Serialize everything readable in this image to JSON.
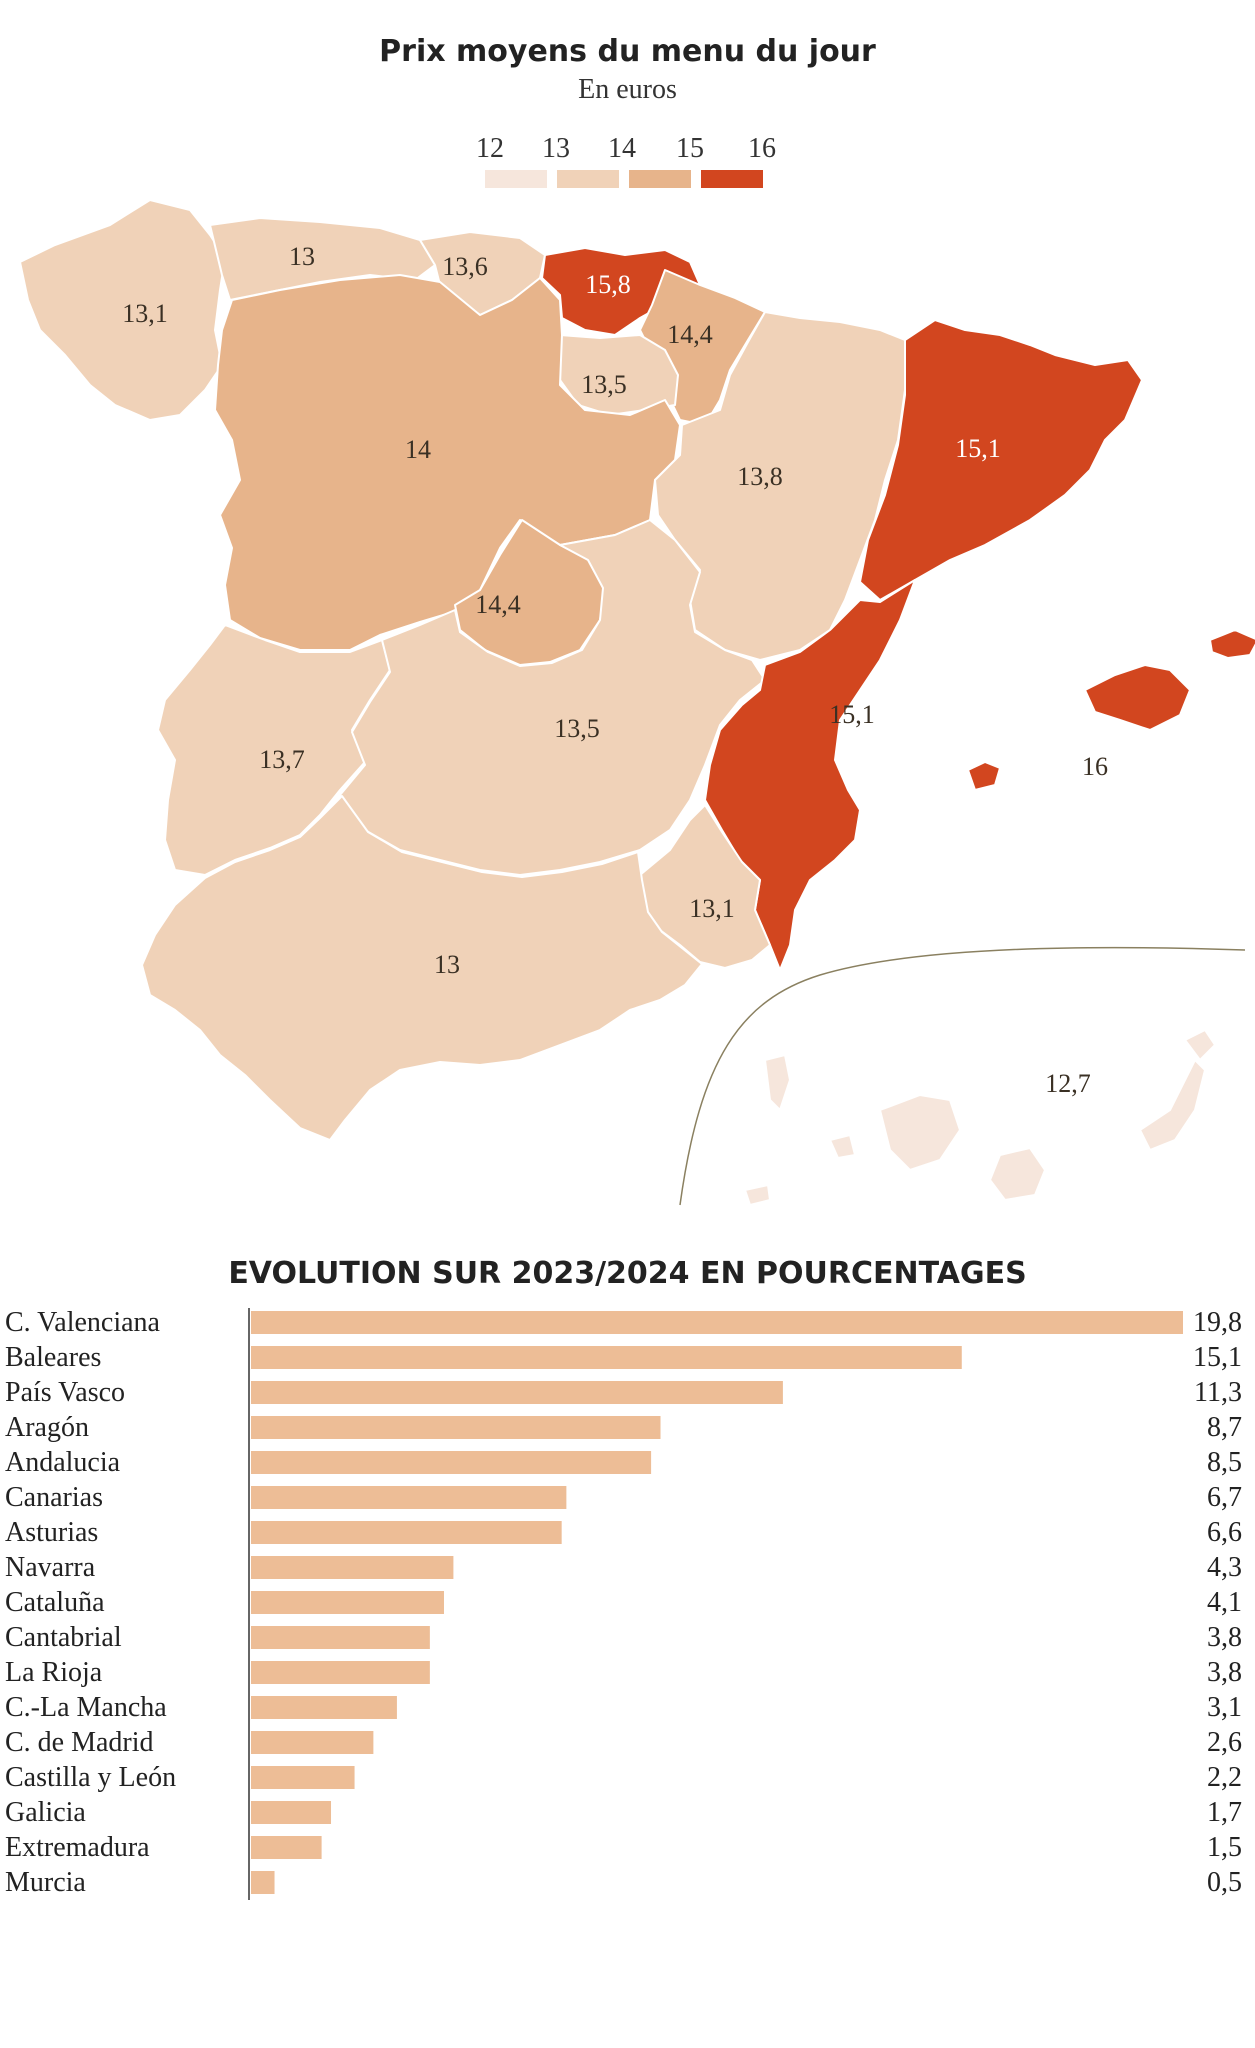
{
  "map": {
    "title": "Prix moyens du menu du jour",
    "subtitle": "En euros",
    "legend": {
      "labels": [
        "12",
        "13",
        "14",
        "15",
        "16"
      ],
      "colors": [
        "#f6e6dc",
        "#f0d2b8",
        "#e7b48b",
        "#d2461f"
      ]
    },
    "region_values": [
      {
        "id": "galicia",
        "label": "13,1",
        "color": "#f0d2b8"
      },
      {
        "id": "asturias",
        "label": "13",
        "color": "#f0d2b8"
      },
      {
        "id": "cantabria",
        "label": "13,6",
        "color": "#f0d2b8"
      },
      {
        "id": "pais-vasco",
        "label": "15,8",
        "color": "#d2461f"
      },
      {
        "id": "navarra",
        "label": "14,4",
        "color": "#e7b48b"
      },
      {
        "id": "la-rioja",
        "label": "13,5",
        "color": "#f0d2b8"
      },
      {
        "id": "castilla-y-leon",
        "label": "14",
        "color": "#e7b48b"
      },
      {
        "id": "aragon",
        "label": "13,8",
        "color": "#f0d2b8"
      },
      {
        "id": "cataluna",
        "label": "15,1",
        "color": "#d2461f"
      },
      {
        "id": "madrid",
        "label": "14,4",
        "color": "#e7b48b"
      },
      {
        "id": "extremadura",
        "label": "13,7",
        "color": "#f0d2b8"
      },
      {
        "id": "castilla-la-mancha",
        "label": "13,5",
        "color": "#f0d2b8"
      },
      {
        "id": "valenciana",
        "label": "15,1",
        "color": "#d2461f"
      },
      {
        "id": "baleares",
        "label": "16",
        "color": "#d2461f"
      },
      {
        "id": "murcia",
        "label": "13,1",
        "color": "#f0d2b8"
      },
      {
        "id": "andalucia",
        "label": "13",
        "color": "#f0d2b8"
      },
      {
        "id": "canarias",
        "label": "12,7",
        "color": "#f6e6dc"
      }
    ]
  },
  "chart_data": {
    "type": "bar",
    "orientation": "horizontal",
    "title": "EVOLUTION SUR 2023/2024 EN POURCENTAGES",
    "categories": [
      "C. Valenciana",
      "Baleares",
      "País Vasco",
      "Aragón",
      "Andalucia",
      "Canarias",
      "Asturias",
      "Navarra",
      "Cataluña",
      "Cantabrial",
      "La Rioja",
      "C.-La Mancha",
      "C. de Madrid",
      "Castilla y León",
      "Galicia",
      "Extremadura",
      "Murcia"
    ],
    "values": [
      19.8,
      15.1,
      11.3,
      8.7,
      8.5,
      6.7,
      6.6,
      4.3,
      4.1,
      3.8,
      3.8,
      3.1,
      2.6,
      2.2,
      1.7,
      1.5,
      0.5
    ],
    "value_labels": [
      "19,8",
      "15,1",
      "11,3",
      "8,7",
      "8,5",
      "6,7",
      "6,6",
      "4,3",
      "4,1",
      "3,8",
      "3,8",
      "3,1",
      "2,6",
      "2,2",
      "1,7",
      "1,5",
      "0,5"
    ],
    "bar_color": "#edbd96",
    "xlim": [
      0,
      19.8
    ],
    "grid": false
  }
}
